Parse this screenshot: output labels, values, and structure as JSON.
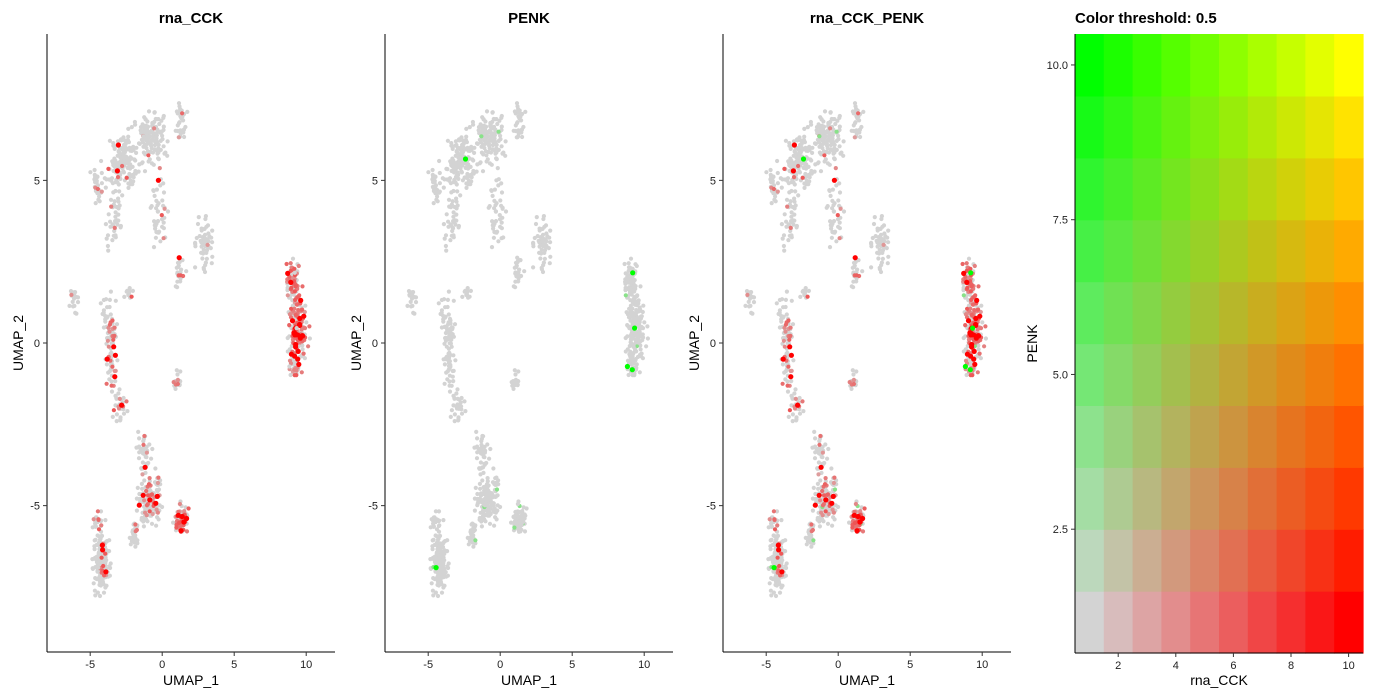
{
  "chart_data": [
    {
      "type": "scatter",
      "title": "rna_CCK",
      "xlabel": "UMAP_1",
      "ylabel": "UMAP_2",
      "xlim": [
        -8,
        12
      ],
      "ylim": [
        -9.5,
        9.5
      ],
      "x_ticks": [
        -5,
        0,
        5,
        10
      ],
      "y_ticks": [
        -5,
        0,
        5
      ],
      "highlight_color": "#ff0000",
      "background_color": "#d3d3d3"
    },
    {
      "type": "scatter",
      "title": "PENK",
      "xlabel": "UMAP_1",
      "ylabel": "UMAP_2",
      "xlim": [
        -8,
        12
      ],
      "ylim": [
        -9.5,
        9.5
      ],
      "x_ticks": [
        -5,
        0,
        5,
        10
      ],
      "y_ticks": [
        -5,
        0,
        5
      ],
      "highlight_color": "#00ff00",
      "background_color": "#d3d3d3"
    },
    {
      "type": "scatter",
      "title": "rna_CCK_PENK",
      "xlabel": "UMAP_1",
      "ylabel": "UMAP_2",
      "xlim": [
        -8,
        12
      ],
      "ylim": [
        -9.5,
        9.5
      ],
      "x_ticks": [
        -5,
        0,
        5,
        10
      ],
      "y_ticks": [
        -5,
        0,
        5
      ],
      "highlight_color": "#ff0000",
      "highlight_color_2": "#00ff00",
      "background_color": "#d3d3d3"
    },
    {
      "type": "heatmap",
      "title": "Color threshold: 0.5",
      "xlabel": "rna_CCK",
      "ylabel": "PENK",
      "x_range": [
        0.5,
        10.5
      ],
      "y_range": [
        0.5,
        10.5
      ],
      "x_ticks": [
        2,
        4,
        6,
        8,
        10
      ],
      "x_tick_labels": [
        "2",
        "4",
        "6",
        "8",
        "10"
      ],
      "y_ticks": [
        2.5,
        5.0,
        7.5,
        10.0
      ],
      "y_tick_labels": [
        "2.5",
        "5.0",
        "7.5",
        "10.0"
      ],
      "grid_size": 10,
      "low_color": "#d3d3d3",
      "x_high_color": "#ff0000",
      "y_high_color": "#00ff00",
      "both_high_color": "#ffff00"
    }
  ]
}
